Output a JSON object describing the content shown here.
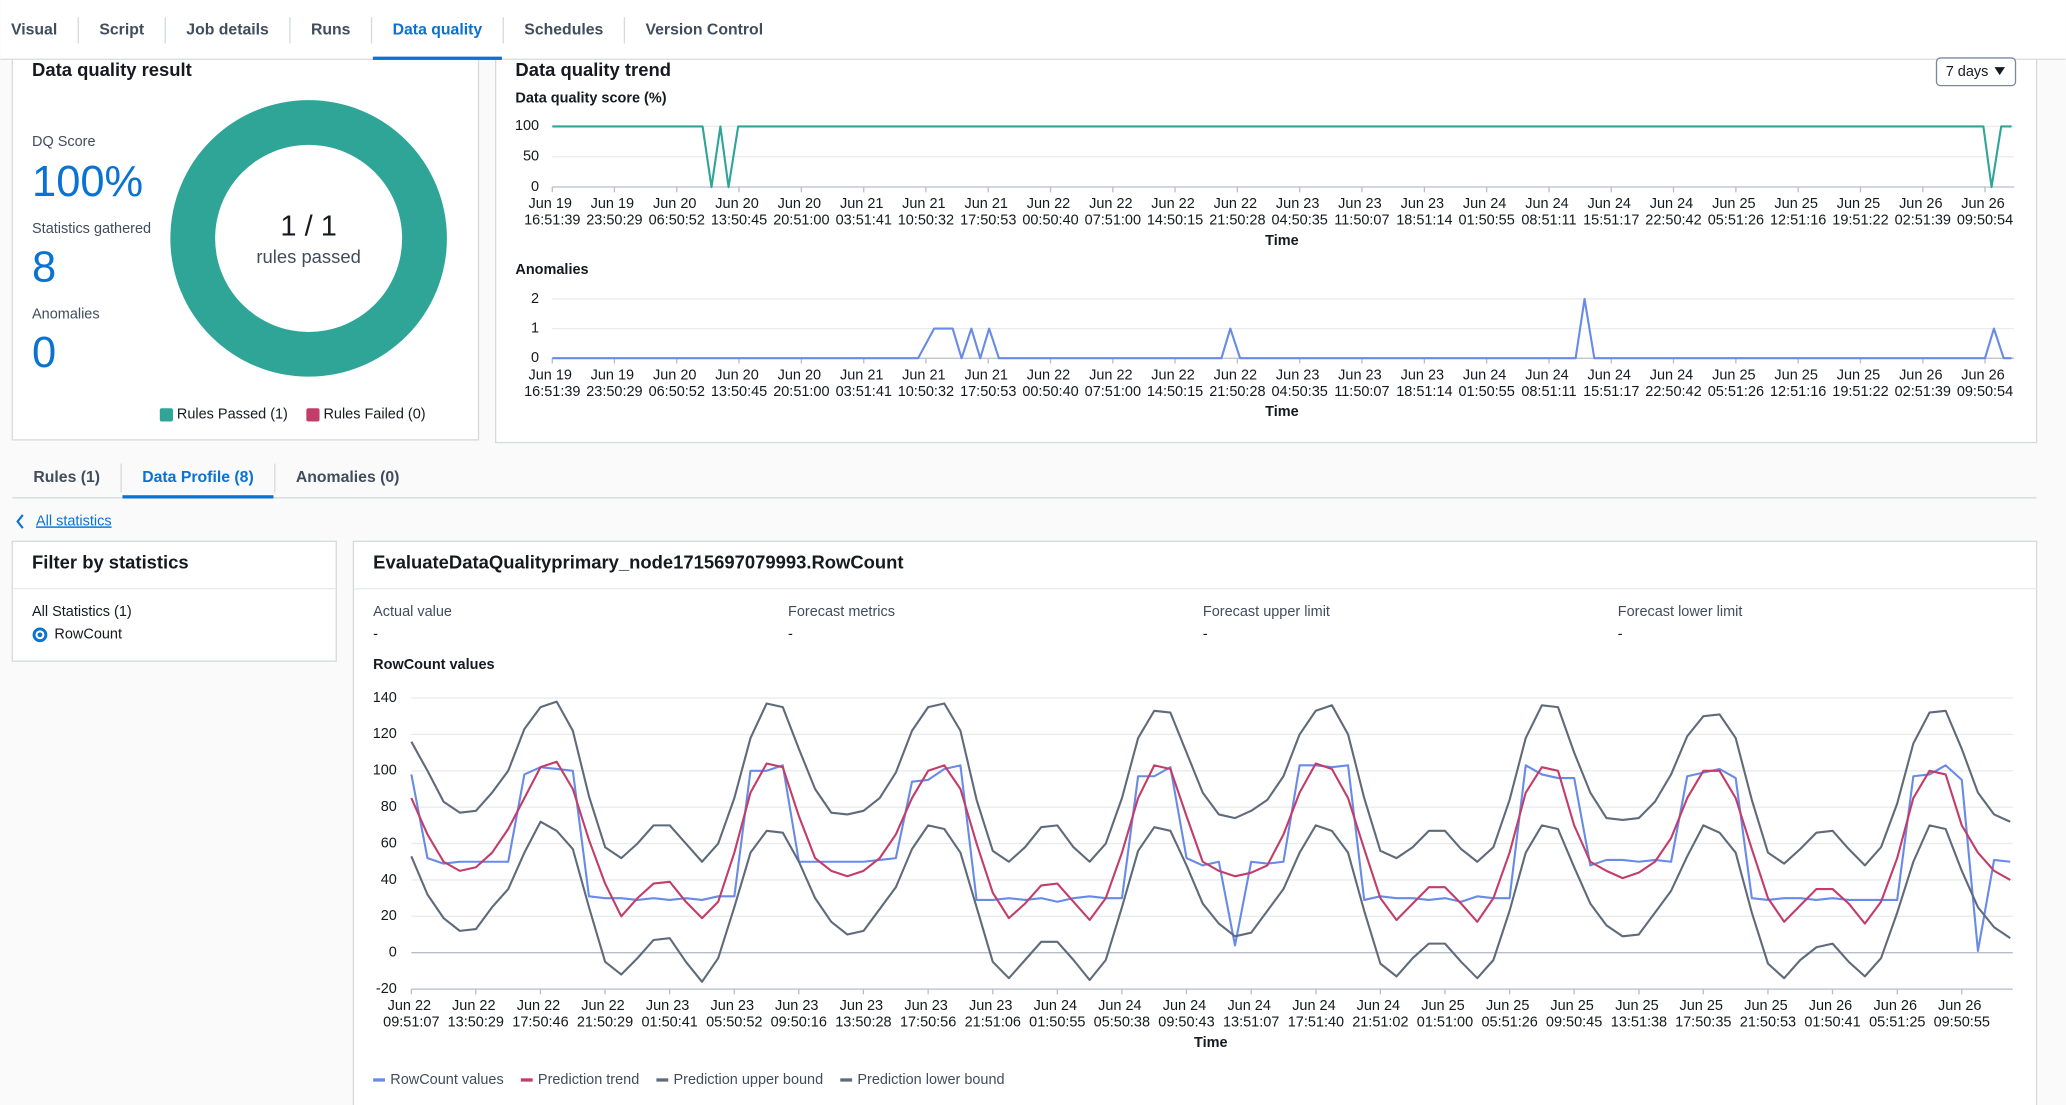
{
  "top_tabs": {
    "items": [
      "Visual",
      "Script",
      "Job details",
      "Runs",
      "Data quality",
      "Schedules",
      "Version Control"
    ],
    "active": 4
  },
  "result_panel": {
    "title": "Data quality result",
    "stats": [
      {
        "label": "DQ Score",
        "value": "100%"
      },
      {
        "label": "Statistics gathered",
        "value": "8"
      },
      {
        "label": "Anomalies",
        "value": "0"
      }
    ]
  },
  "trend_panel": {
    "title": "Data quality trend",
    "range": "7 days"
  },
  "profile_tabs": {
    "items": [
      "Rules (1)",
      "Data Profile (8)",
      "Anomalies (0)"
    ],
    "active": 1
  },
  "back_link": "All statistics",
  "filter_panel": {
    "title": "Filter by statistics",
    "group": "All Statistics (1)",
    "option": "RowCount"
  },
  "detail_panel": {
    "title": "EvaluateDataQualityprimary_node1715697079993.RowCount",
    "metrics": [
      {
        "label": "Actual value",
        "value": "-"
      },
      {
        "label": "Forecast metrics",
        "value": "-"
      },
      {
        "label": "Forecast upper limit",
        "value": "-"
      },
      {
        "label": "Forecast lower limit",
        "value": "-"
      }
    ]
  },
  "chart_data": [
    {
      "type": "pie",
      "categories": [
        "Rules Passed (1)",
        "Rules Failed (0)"
      ],
      "values": [
        1,
        0
      ],
      "colors": [
        "#2ea597",
        "#c33d69"
      ],
      "center_label": "1 / 1",
      "center_sublabel": "rules passed"
    },
    {
      "type": "line",
      "title": "Data quality score (%)",
      "xlabel": "Time",
      "color": "#2ea597",
      "grid": true,
      "x": [
        "Jun 19 16:51:39",
        "Jun 20 09:45:00",
        "Jun 20 10:45:00",
        "Jun 20 11:45:00",
        "Jun 20 12:40:00",
        "Jun 20 13:45:00",
        "Jun 26 09:40:00",
        "Jun 26 10:35:00",
        "Jun 26 11:40:00",
        "Jun 26 12:50:00"
      ],
      "values": [
        100,
        100,
        0,
        100,
        0,
        100,
        100,
        0,
        100,
        100
      ],
      "xlim": [
        "Jun 19 16:51:39",
        "Jun 26 12:50:00"
      ],
      "ylim": [
        0,
        100
      ],
      "yticks": [
        0,
        50,
        100
      ],
      "xticks": [
        "Jun 19 16:51:39",
        "Jun 19 23:50:29",
        "Jun 20 06:50:52",
        "Jun 20 13:50:45",
        "Jun 20 20:51:00",
        "Jun 21 03:51:41",
        "Jun 21 10:50:32",
        "Jun 21 17:50:53",
        "Jun 22 00:50:40",
        "Jun 22 07:51:00",
        "Jun 22 14:50:15",
        "Jun 22 21:50:28",
        "Jun 23 04:50:35",
        "Jun 23 11:50:07",
        "Jun 23 18:51:14",
        "Jun 24 01:50:55",
        "Jun 24 08:51:11",
        "Jun 24 15:51:17",
        "Jun 24 22:50:42",
        "Jun 25 05:51:26",
        "Jun 25 12:51:16",
        "Jun 25 19:51:22",
        "Jun 26 02:51:39",
        "Jun 26 09:50:54"
      ]
    },
    {
      "type": "line",
      "title": "Anomalies",
      "xlabel": "Time",
      "color": "#688ae8",
      "grid": true,
      "x": [
        "Jun 19 16:51:39",
        "Jun 21 09:58:00",
        "Jun 21 11:46:00",
        "Jun 21 13:51:00",
        "Jun 21 14:51:00",
        "Jun 21 15:57:00",
        "Jun 21 16:57:00",
        "Jun 21 17:57:00",
        "Jun 21 19:03:00",
        "Jun 22 20:03:00",
        "Jun 22 21:03:00",
        "Jun 22 22:09:00",
        "Jun 24 11:51:00",
        "Jun 24 12:51:00",
        "Jun 24 13:57:00",
        "Jun 26 09:51:00",
        "Jun 26 10:51:00",
        "Jun 26 11:57:00",
        "Jun 26 12:50:00"
      ],
      "values": [
        0,
        0,
        1,
        1,
        0,
        1,
        0,
        1,
        0,
        0,
        1,
        0,
        0,
        2,
        0,
        0,
        1,
        0,
        0
      ],
      "xlim": [
        "Jun 19 16:51:39",
        "Jun 26 12:50:00"
      ],
      "ylim": [
        0,
        2
      ],
      "yticks": [
        0,
        1,
        2
      ],
      "xticks": [
        "Jun 19 16:51:39",
        "Jun 19 23:50:29",
        "Jun 20 06:50:52",
        "Jun 20 13:50:45",
        "Jun 20 20:51:00",
        "Jun 21 03:51:41",
        "Jun 21 10:50:32",
        "Jun 21 17:50:53",
        "Jun 22 00:50:40",
        "Jun 22 07:51:00",
        "Jun 22 14:50:15",
        "Jun 22 21:50:28",
        "Jun 23 04:50:35",
        "Jun 23 11:50:07",
        "Jun 23 18:51:14",
        "Jun 24 01:50:55",
        "Jun 24 08:51:11",
        "Jun 24 15:51:17",
        "Jun 24 22:50:42",
        "Jun 25 05:51:26",
        "Jun 25 12:51:16",
        "Jun 25 19:51:22",
        "Jun 26 02:51:39",
        "Jun 26 09:50:54"
      ]
    },
    {
      "type": "line",
      "title": "RowCount values",
      "xlabel": "Time",
      "grid": true,
      "x": [
        "Jun 22 09:51:07",
        "Jun 22 10:51:00",
        "Jun 22 11:51:00",
        "Jun 22 12:51:00",
        "Jun 22 13:51:00",
        "Jun 22 14:51:00",
        "Jun 22 15:51:00",
        "Jun 22 16:51:00",
        "Jun 22 17:51:00",
        "Jun 22 18:51:00",
        "Jun 22 19:51:00",
        "Jun 22 20:51:00",
        "Jun 22 21:51:00",
        "Jun 22 22:51:00",
        "Jun 22 23:51:00",
        "Jun 23 00:51:00",
        "Jun 23 01:51:00",
        "Jun 23 02:51:00",
        "Jun 23 03:51:00",
        "Jun 23 04:51:00",
        "Jun 23 05:51:00",
        "Jun 23 06:51:00",
        "Jun 23 07:51:00",
        "Jun 23 08:51:00",
        "Jun 23 09:51:00",
        "Jun 23 10:51:00",
        "Jun 23 11:51:00",
        "Jun 23 12:51:00",
        "Jun 23 13:51:00",
        "Jun 23 14:51:00",
        "Jun 23 15:51:00",
        "Jun 23 16:51:00",
        "Jun 23 17:51:00",
        "Jun 23 18:51:00",
        "Jun 23 19:51:00",
        "Jun 23 20:51:00",
        "Jun 23 21:51:00",
        "Jun 23 22:51:00",
        "Jun 23 23:51:00",
        "Jun 24 00:51:00",
        "Jun 24 01:51:00",
        "Jun 24 02:51:00",
        "Jun 24 03:51:00",
        "Jun 24 04:51:00",
        "Jun 24 05:51:00",
        "Jun 24 06:51:00",
        "Jun 24 07:51:00",
        "Jun 24 08:51:00",
        "Jun 24 09:51:00",
        "Jun 24 10:51:00",
        "Jun 24 11:51:00",
        "Jun 24 12:51:00",
        "Jun 24 13:51:00",
        "Jun 24 14:51:00",
        "Jun 24 15:51:00",
        "Jun 24 16:51:00",
        "Jun 24 17:51:00",
        "Jun 24 18:51:00",
        "Jun 24 19:51:00",
        "Jun 24 20:51:00",
        "Jun 24 21:51:00",
        "Jun 24 22:51:00",
        "Jun 24 23:51:00",
        "Jun 25 00:51:00",
        "Jun 25 01:51:00",
        "Jun 25 02:51:00",
        "Jun 25 03:51:00",
        "Jun 25 04:51:00",
        "Jun 25 05:51:00",
        "Jun 25 06:51:00",
        "Jun 25 07:51:00",
        "Jun 25 08:51:00",
        "Jun 25 09:51:00",
        "Jun 25 10:51:00",
        "Jun 25 11:51:00",
        "Jun 25 12:51:00",
        "Jun 25 13:51:00",
        "Jun 25 14:51:00",
        "Jun 25 15:51:00",
        "Jun 25 16:51:00",
        "Jun 25 17:51:00",
        "Jun 25 18:51:00",
        "Jun 25 19:51:00",
        "Jun 25 20:51:00",
        "Jun 25 21:51:00",
        "Jun 25 22:51:00",
        "Jun 25 23:51:00",
        "Jun 26 00:51:00",
        "Jun 26 01:51:00",
        "Jun 26 02:51:00",
        "Jun 26 03:51:00",
        "Jun 26 04:51:00",
        "Jun 26 05:51:00",
        "Jun 26 06:51:00",
        "Jun 26 07:51:00",
        "Jun 26 08:51:00",
        "Jun 26 09:51:00",
        "Jun 26 10:51:00",
        "Jun 26 11:51:00",
        "Jun 26 12:51:00"
      ],
      "series": [
        {
          "name": "RowCount values",
          "color": "#688ae8",
          "values": [
            98,
            52,
            49,
            50,
            50,
            50,
            50,
            98,
            102,
            101,
            100,
            31,
            30,
            30,
            29,
            30,
            29,
            30,
            29,
            31,
            31,
            100,
            100,
            103,
            50,
            50,
            50,
            50,
            50,
            51,
            52,
            94,
            95,
            101,
            103,
            29,
            29,
            30,
            29,
            30,
            28,
            30,
            31,
            30,
            30,
            97,
            97,
            102,
            52,
            48,
            50,
            4,
            50,
            49,
            50,
            103,
            103,
            102,
            103,
            29,
            31,
            30,
            30,
            29,
            30,
            28,
            31,
            30,
            30,
            103,
            98,
            96,
            96,
            48,
            51,
            51,
            50,
            51,
            50,
            97,
            99,
            101,
            96,
            30,
            29,
            30,
            30,
            29,
            30,
            29,
            29,
            29,
            29,
            97,
            98,
            103,
            95,
            1,
            51,
            50
          ]
        },
        {
          "name": "Prediction trend",
          "color": "#c33d69",
          "values": [
            85,
            65,
            50,
            45,
            47,
            55,
            68,
            85,
            102,
            105,
            90,
            62,
            38,
            20,
            30,
            38,
            39,
            28,
            19,
            28,
            55,
            88,
            104,
            102,
            75,
            52,
            45,
            42,
            45,
            52,
            65,
            85,
            100,
            103,
            90,
            60,
            33,
            19,
            27,
            37,
            38,
            28,
            18,
            30,
            55,
            85,
            103,
            101,
            75,
            50,
            45,
            42,
            44,
            48,
            65,
            88,
            104,
            101,
            85,
            57,
            30,
            18,
            27,
            36,
            36,
            27,
            17,
            30,
            55,
            88,
            102,
            100,
            70,
            50,
            45,
            41,
            44,
            50,
            63,
            85,
            100,
            100,
            85,
            57,
            30,
            17,
            26,
            35,
            35,
            27,
            16,
            28,
            52,
            85,
            100,
            98,
            70,
            55,
            45,
            40
          ]
        },
        {
          "name": "Prediction upper bound",
          "color": "#5f6b7a",
          "values": [
            116,
            100,
            83,
            77,
            78,
            88,
            100,
            123,
            135,
            138,
            122,
            86,
            58,
            52,
            60,
            70,
            70,
            60,
            50,
            60,
            85,
            118,
            137,
            135,
            112,
            90,
            77,
            76,
            78,
            85,
            99,
            122,
            135,
            137,
            122,
            84,
            56,
            50,
            58,
            69,
            70,
            58,
            50,
            60,
            85,
            118,
            133,
            132,
            110,
            88,
            76,
            74,
            78,
            84,
            97,
            120,
            133,
            136,
            120,
            85,
            56,
            52,
            58,
            67,
            67,
            57,
            50,
            58,
            84,
            118,
            136,
            135,
            110,
            88,
            74,
            73,
            74,
            83,
            98,
            119,
            130,
            131,
            118,
            84,
            55,
            49,
            57,
            66,
            67,
            57,
            48,
            58,
            82,
            115,
            132,
            133,
            112,
            88,
            76,
            72
          ]
        },
        {
          "name": "Prediction lower bound",
          "color": "#5f6b7a",
          "values": [
            53,
            32,
            19,
            12,
            13,
            25,
            35,
            55,
            72,
            67,
            57,
            25,
            -5,
            -12,
            -3,
            7,
            8,
            -5,
            -16,
            -3,
            25,
            55,
            67,
            66,
            50,
            30,
            17,
            10,
            12,
            24,
            36,
            57,
            70,
            68,
            55,
            25,
            -5,
            -14,
            -4,
            6,
            6,
            -4,
            -15,
            -4,
            25,
            56,
            69,
            67,
            48,
            27,
            16,
            9,
            11,
            23,
            35,
            55,
            70,
            67,
            55,
            23,
            -6,
            -13,
            -3,
            5,
            5,
            -5,
            -14,
            -4,
            23,
            55,
            70,
            68,
            47,
            27,
            15,
            9,
            10,
            22,
            34,
            53,
            70,
            66,
            55,
            22,
            -6,
            -14,
            -4,
            3,
            5,
            -5,
            -13,
            -3,
            22,
            50,
            70,
            68,
            45,
            25,
            14,
            8
          ]
        }
      ],
      "xlim": [
        "Jun 22 09:51:07",
        "Jun 26 12:51:00"
      ],
      "ylim": [
        -20,
        140
      ],
      "yticks": [
        -20,
        0,
        20,
        40,
        60,
        80,
        100,
        120,
        140
      ],
      "xticks": [
        "Jun 22 09:51:07",
        "Jun 22 13:50:29",
        "Jun 22 17:50:46",
        "Jun 22 21:50:29",
        "Jun 23 01:50:41",
        "Jun 23 05:50:52",
        "Jun 23 09:50:16",
        "Jun 23 13:50:28",
        "Jun 23 17:50:56",
        "Jun 23 21:51:06",
        "Jun 24 01:50:55",
        "Jun 24 05:50:38",
        "Jun 24 09:50:43",
        "Jun 24 13:51:07",
        "Jun 24 17:51:40",
        "Jun 24 21:51:02",
        "Jun 25 01:51:00",
        "Jun 25 05:51:26",
        "Jun 25 09:50:45",
        "Jun 25 13:51:38",
        "Jun 25 17:50:35",
        "Jun 25 21:50:53",
        "Jun 26 01:50:41",
        "Jun 26 05:51:25",
        "Jun 26 09:50:55"
      ]
    }
  ]
}
